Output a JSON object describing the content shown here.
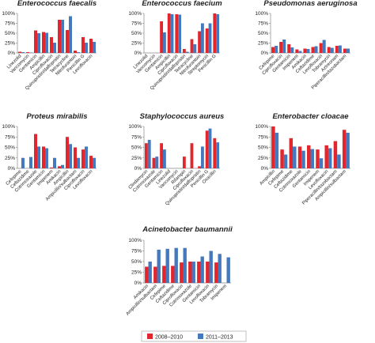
{
  "colors": {
    "series_2008_2010": "#e3262d",
    "series_2011_2013": "#4479bd",
    "axis": "#888888"
  },
  "chart_data": [
    {
      "type": "bar",
      "title": "Enterococcus faecalis",
      "categories": [
        "Linezolid",
        "Vancomycin",
        "Gentamicin",
        "Ampicillin",
        "Ciprofloxacin",
        "Quinupristin/dalfopristin",
        "Tetracycline",
        "Nitrofurantoin",
        "Penicillin G",
        "Levofloxacin"
      ],
      "series": [
        {
          "name": "2008–2010",
          "values": [
            3,
            2,
            57,
            53,
            40,
            84,
            58,
            6,
            40,
            36
          ]
        },
        {
          "name": "2011–2013",
          "values": [
            2,
            1,
            50,
            51,
            26,
            84,
            93,
            2,
            26,
            28
          ]
        }
      ],
      "ylim": [
        0,
        100
      ],
      "yticks": [
        "0%",
        "25%",
        "50%",
        "75%",
        "100%"
      ]
    },
    {
      "type": "bar",
      "title": "Enterococcus faecium",
      "categories": [
        "Linezolid",
        "Vancomycin",
        "Gentamicin",
        "Ampicillin",
        "Ciprofloxacin",
        "Quinupristin/dalfopristin",
        "Tetracycline",
        "Nitrofurantoin",
        "Streptomycin",
        "Penicillin G"
      ],
      "series": [
        {
          "name": "2008–2010",
          "values": [
            0,
            0,
            80,
            100,
            98,
            10,
            35,
            55,
            62,
            100
          ]
        },
        {
          "name": "2011–2013",
          "values": [
            0,
            0,
            52,
            98,
            97,
            3,
            22,
            75,
            75,
            98
          ]
        }
      ],
      "ylim": [
        0,
        100
      ],
      "yticks": [
        "0%",
        "25%",
        "50%",
        "75%",
        "100%"
      ]
    },
    {
      "type": "bar",
      "title": "Pseudomonas aeruginosa",
      "categories": [
        "Cefepime",
        "Ciprofloxacin",
        "Gentamicin",
        "Imipenem",
        "Amikacin",
        "Ceftazidime",
        "Levofloxacin",
        "Tobramycin",
        "Aztreonam",
        "Piperacillin/tazobactam"
      ],
      "series": [
        {
          "name": "2008–2010",
          "values": [
            15,
            28,
            22,
            9,
            11,
            15,
            25,
            15,
            18,
            11
          ]
        },
        {
          "name": "2011–2013",
          "values": [
            18,
            34,
            14,
            5,
            10,
            17,
            33,
            13,
            19,
            11
          ]
        }
      ],
      "ylim": [
        0,
        100
      ],
      "yticks": [
        "0%",
        "25%",
        "50%",
        "75%",
        "100%"
      ]
    },
    {
      "type": "bar",
      "title": "Proteus mirabilis",
      "categories": [
        "Cefepime",
        "Ceftazidime",
        "Cotrimoxazole",
        "Gentamicin",
        "Imipenem",
        "Amikacin",
        "Ampicillin",
        "Ampicillin/sulbactam",
        "Ciprofloxacin",
        "Levofloxacin"
      ],
      "series": [
        {
          "name": "2008–2010",
          "values": [
            0,
            0,
            82,
            52,
            2,
            5,
            75,
            50,
            45,
            30
          ]
        },
        {
          "name": "2011–2013",
          "values": [
            25,
            27,
            52,
            48,
            25,
            8,
            58,
            25,
            52,
            25
          ]
        }
      ],
      "ylim": [
        0,
        100
      ],
      "yticks": [
        "0%",
        "25%",
        "50%",
        "75%",
        "100%"
      ]
    },
    {
      "type": "bar",
      "title": "Staphylococcus aureus",
      "categories": [
        "Clindamycin",
        "Cotrimoxazole",
        "Gentamicin",
        "Linezolid",
        "Vancomycin",
        "Rifampin",
        "Ciprofloxacin",
        "Quinupristin/dalfopristin",
        "Penicillin G",
        "Oxacillin"
      ],
      "series": [
        {
          "name": "2008–2010",
          "values": [
            60,
            25,
            60,
            0,
            0,
            28,
            60,
            5,
            90,
            72
          ]
        },
        {
          "name": "2011–2013",
          "values": [
            68,
            28,
            45,
            0,
            0,
            0,
            0,
            52,
            95,
            62
          ]
        }
      ],
      "ylim": [
        0,
        100
      ],
      "yticks": [
        "0%",
        "25%",
        "50%",
        "75%",
        "100%"
      ]
    },
    {
      "type": "bar",
      "title": "Enterobacter cloacae",
      "categories": [
        "Ampicillin",
        "Cefepime",
        "Ceftazidime",
        "Cotrimoxazole",
        "Gentamicin",
        "Imipenem",
        "Levofloxacin",
        "Piperacillin/tazobactam",
        "Ampicillin/sulbactam"
      ],
      "series": [
        {
          "name": "2008–2010",
          "values": [
            100,
            45,
            72,
            52,
            55,
            45,
            55,
            65,
            92
          ]
        },
        {
          "name": "2011–2013",
          "values": [
            85,
            33,
            52,
            42,
            46,
            24,
            48,
            33,
            85
          ]
        }
      ],
      "ylim": [
        0,
        100
      ],
      "yticks": [
        "0%",
        "25%",
        "50%",
        "75%",
        "100%"
      ]
    },
    {
      "type": "bar",
      "title": "Acinetobacter baumannii",
      "categories": [
        "Amikacin",
        "Ampicillin/sulbactam",
        "Cefepime",
        "Ceftazidime",
        "Ciprofloxacin",
        "Cotrimoxazole",
        "Gentamicin",
        "Levofloxacin",
        "Tobramycin",
        "Imipenem"
      ],
      "series": [
        {
          "name": "2008–2010",
          "values": [
            38,
            38,
            40,
            40,
            48,
            50,
            50,
            50,
            48,
            0
          ]
        },
        {
          "name": "2011–2013",
          "values": [
            50,
            78,
            80,
            82,
            82,
            50,
            62,
            75,
            68,
            60
          ]
        }
      ],
      "ylim": [
        0,
        100
      ],
      "yticks": [
        "0%",
        "25%",
        "50%",
        "75%",
        "100%"
      ]
    }
  ],
  "legend": {
    "placement": "bottom-center",
    "items": [
      {
        "label": "2008–2010"
      },
      {
        "label": "2011–2013"
      }
    ]
  }
}
